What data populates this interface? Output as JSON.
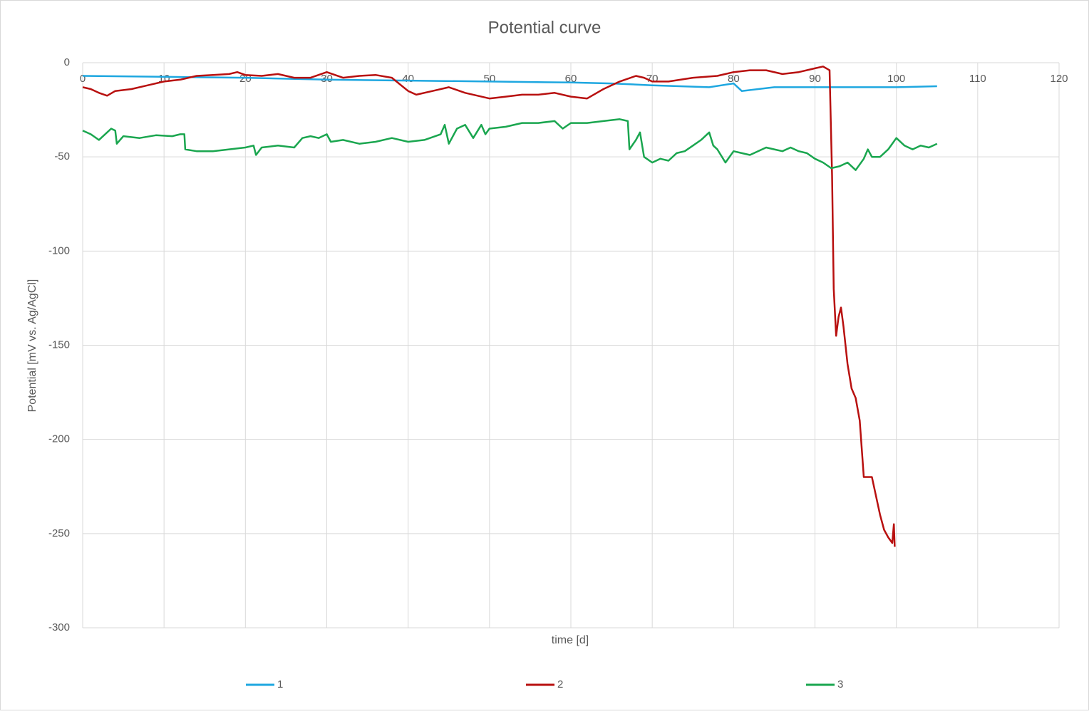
{
  "chart_data": {
    "type": "line",
    "title": "Potential curve",
    "x_label": "time [d]",
    "y_label": "Potential [mV vs. Ag/AgCl]",
    "xlim": [
      0,
      120
    ],
    "xticks": [
      0,
      10,
      20,
      30,
      40,
      50,
      60,
      70,
      80,
      90,
      100,
      110,
      120
    ],
    "ylim": [
      -300,
      0
    ],
    "yticks": [
      0,
      -50,
      -100,
      -150,
      -200,
      -250,
      -300
    ],
    "grid": true,
    "legend": "bottom",
    "series": [
      {
        "name": "1",
        "color": "#1ea7e0",
        "x": [
          0,
          10,
          20,
          30,
          40,
          50,
          60,
          65,
          70,
          77,
          80,
          81,
          85,
          90,
          95,
          100,
          105
        ],
        "values": [
          -7,
          -7.5,
          -8,
          -9,
          -9.5,
          -10,
          -10.5,
          -11,
          -12,
          -13,
          -11,
          -15,
          -13,
          -13,
          -13,
          -13,
          -12.5
        ]
      },
      {
        "name": "2",
        "color": "#b8100f",
        "x": [
          0,
          1,
          2,
          3,
          4,
          6,
          8,
          10,
          12,
          14,
          16,
          18,
          19,
          20,
          22,
          24,
          26,
          28,
          30,
          32,
          34,
          36,
          38,
          40,
          41,
          43,
          45,
          47,
          50,
          52,
          54,
          56,
          58,
          60,
          62,
          64,
          66,
          68,
          69,
          70,
          72,
          75,
          78,
          80,
          82,
          84,
          86,
          88,
          90,
          91,
          91.8,
          92.1,
          92.3,
          92.6,
          92.9,
          93.2,
          93.5,
          94,
          94.5,
          95,
          95.5,
          96,
          97,
          98,
          98.5,
          99,
          99.5,
          99.7,
          99.8
        ],
        "values": [
          -13,
          -14,
          -16,
          -17.5,
          -15,
          -14,
          -12,
          -10,
          -9,
          -7,
          -6.5,
          -6,
          -5,
          -6.5,
          -7,
          -6,
          -8,
          -8,
          -5,
          -8,
          -7,
          -6.5,
          -8,
          -15,
          -17,
          -15,
          -13,
          -16,
          -19,
          -18,
          -17,
          -17,
          -16,
          -18,
          -19,
          -14,
          -10,
          -7,
          -8,
          -10,
          -10,
          -8,
          -7,
          -5,
          -4,
          -4,
          -6,
          -5,
          -3,
          -2,
          -4,
          -60,
          -120,
          -145,
          -135,
          -130,
          -140,
          -160,
          -173,
          -178,
          -190,
          -220,
          -220,
          -240,
          -248,
          -252,
          -255,
          -245,
          -257
        ]
      },
      {
        "name": "3",
        "color": "#1aa64f",
        "x": [
          0,
          1,
          2,
          3,
          3.5,
          4,
          4.2,
          5,
          7,
          9,
          11,
          12,
          12.5,
          12.6,
          14,
          16,
          18,
          20,
          21,
          21.3,
          22,
          24,
          26,
          27,
          28,
          29,
          30,
          30.5,
          32,
          34,
          36,
          38,
          40,
          42,
          44,
          44.5,
          45,
          46,
          47,
          48,
          49,
          49.5,
          50,
          52,
          54,
          56,
          58,
          59,
          60,
          62,
          64,
          66,
          67,
          67.2,
          68,
          68.5,
          69,
          70,
          71,
          72,
          73,
          74,
          75,
          76,
          77,
          77.5,
          78,
          79,
          80,
          81,
          82,
          83,
          84,
          85,
          86,
          87,
          88,
          89,
          90,
          91,
          92,
          93,
          94,
          95,
          96,
          96.5,
          97,
          98,
          99,
          100,
          101,
          102,
          103,
          104,
          105
        ],
        "values": [
          -36,
          -38,
          -41,
          -37,
          -35,
          -36,
          -43,
          -39,
          -40,
          -38.5,
          -39,
          -38,
          -38,
          -46,
          -47,
          -47,
          -46,
          -45,
          -44,
          -49,
          -45,
          -44,
          -45,
          -40,
          -39,
          -40,
          -38,
          -42,
          -41,
          -43,
          -42,
          -40,
          -42,
          -41,
          -38,
          -33,
          -43,
          -35,
          -33,
          -40,
          -33,
          -38,
          -35,
          -34,
          -32,
          -32,
          -31,
          -35,
          -32,
          -32,
          -31,
          -30,
          -31,
          -46,
          -41,
          -37,
          -50,
          -53,
          -51,
          -52,
          -48,
          -47,
          -44,
          -41,
          -37,
          -44,
          -46,
          -53,
          -47,
          -48,
          -49,
          -47,
          -45,
          -46,
          -47,
          -45,
          -47,
          -48,
          -51,
          -53,
          -56,
          -55,
          -53,
          -57,
          -51,
          -46,
          -50,
          -50,
          -46,
          -40,
          -44,
          -46,
          -44,
          -45,
          -43
        ]
      }
    ]
  }
}
